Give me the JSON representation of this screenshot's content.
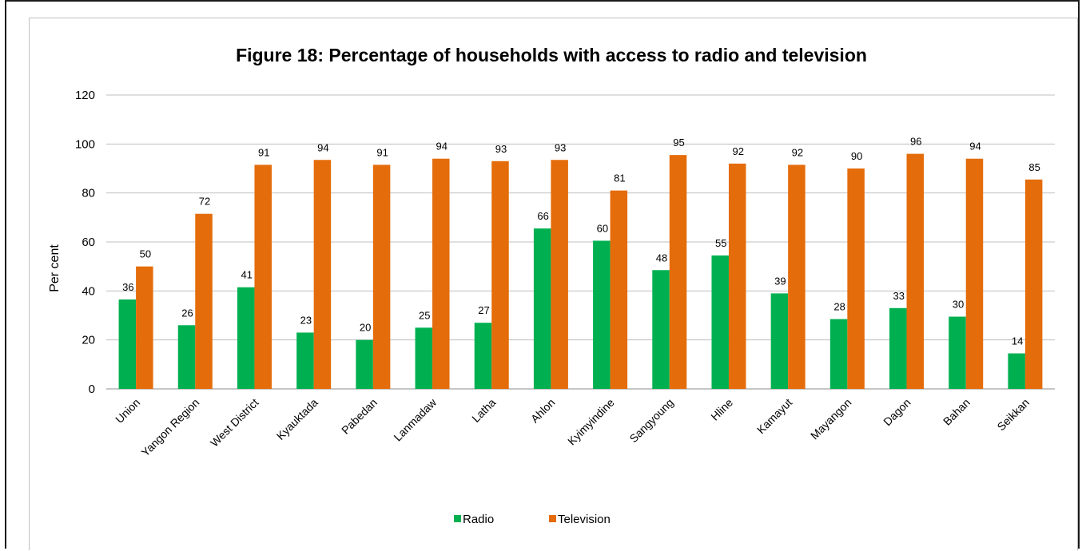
{
  "chart_data": {
    "type": "bar",
    "title": "Figure 18: Percentage of households with access to radio and television",
    "xlabel": "",
    "ylabel": "Per cent",
    "ylim": [
      0,
      120
    ],
    "yticks": [
      0,
      20,
      40,
      60,
      80,
      100,
      120
    ],
    "grid": true,
    "legend_position": "bottom",
    "categories": [
      "Union",
      "Yangon Region",
      "West District",
      "Kyauktada",
      "Pabedan",
      "Lanmadaw",
      "Latha",
      "Ahlon",
      "Kyimyindine",
      "Sangyoung",
      "Hline",
      "Kamayut",
      "Mayangon",
      "Dagon",
      "Bahan",
      "Seikkan"
    ],
    "series": [
      {
        "name": "Radio",
        "color": "#00b050",
        "values": [
          36.5,
          26,
          41.5,
          23,
          20,
          25,
          27,
          65.5,
          60.5,
          48.5,
          54.5,
          39,
          28.5,
          33,
          29.5,
          14.5
        ],
        "labels": [
          "36",
          "26",
          "41",
          "23",
          "20",
          "25",
          "27",
          "66",
          "60",
          "48",
          "55",
          "39",
          "28",
          "33",
          "30",
          "14"
        ]
      },
      {
        "name": "Television",
        "color": "#e46c0a",
        "values": [
          50,
          71.5,
          91.5,
          93.5,
          91.5,
          94,
          93,
          93.5,
          81,
          95.5,
          92,
          91.5,
          90,
          96,
          94,
          85.5
        ],
        "labels": [
          "50",
          "72",
          "91",
          "94",
          "91",
          "94",
          "93",
          "93",
          "81",
          "95",
          "92",
          "92",
          "90",
          "96",
          "94",
          "85"
        ]
      }
    ]
  }
}
